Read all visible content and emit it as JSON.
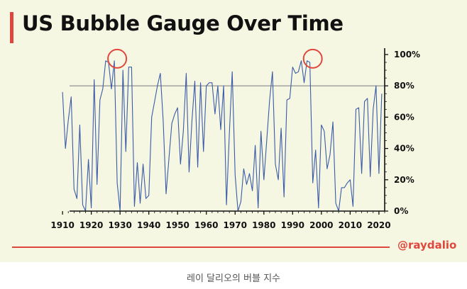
{
  "chart_data": {
    "type": "line",
    "title": "US Bubble Gauge Over Time",
    "xlabel": "",
    "ylabel": "",
    "xlim": [
      1908,
      2022
    ],
    "ylim": [
      0,
      1
    ],
    "x_ticks": [
      "1910",
      "1920",
      "1930",
      "1940",
      "1950",
      "1960",
      "1970",
      "1980",
      "1990",
      "2000",
      "2010",
      "2020"
    ],
    "y_ticks": [
      "0%",
      "20%",
      "40%",
      "60%",
      "80%",
      "100%"
    ],
    "y_tick_values": [
      0,
      0.2,
      0.4,
      0.6,
      0.8,
      1.0
    ],
    "threshold": 0.8,
    "grid": false,
    "line_color": "#3b5ba8",
    "series": [
      {
        "name": "",
        "x": [
          1910,
          1911,
          1912,
          1913,
          1914,
          1915,
          1916,
          1917,
          1918,
          1919,
          1920,
          1921,
          1922,
          1923,
          1924,
          1925,
          1926,
          1927,
          1928,
          1929,
          1930,
          1931,
          1932,
          1933,
          1934,
          1935,
          1936,
          1937,
          1938,
          1939,
          1940,
          1941,
          1942,
          1943,
          1944,
          1945,
          1946,
          1947,
          1948,
          1949,
          1950,
          1951,
          1952,
          1953,
          1954,
          1955,
          1956,
          1957,
          1958,
          1959,
          1960,
          1961,
          1962,
          1963,
          1964,
          1965,
          1966,
          1967,
          1968,
          1969,
          1970,
          1971,
          1972,
          1973,
          1974,
          1975,
          1976,
          1977,
          1978,
          1979,
          1980,
          1981,
          1982,
          1983,
          1984,
          1985,
          1986,
          1987,
          1988,
          1989,
          1990,
          1991,
          1992,
          1993,
          1994,
          1995,
          1996,
          1997,
          1998,
          1999,
          2000,
          2001,
          2002,
          2003,
          2004,
          2005,
          2006,
          2007,
          2008,
          2009,
          2010,
          2011,
          2012,
          2013,
          2014,
          2015,
          2016,
          2017,
          2018,
          2019,
          2020,
          2021
        ],
        "values": [
          0.76,
          0.4,
          0.58,
          0.73,
          0.14,
          0.08,
          0.55,
          0.04,
          0.0,
          0.33,
          0.02,
          0.84,
          0.17,
          0.71,
          0.78,
          0.96,
          0.95,
          0.78,
          0.96,
          0.18,
          0.0,
          0.9,
          0.38,
          0.92,
          0.92,
          0.03,
          0.31,
          0.05,
          0.3,
          0.08,
          0.1,
          0.6,
          0.7,
          0.8,
          0.88,
          0.58,
          0.11,
          0.34,
          0.56,
          0.62,
          0.66,
          0.3,
          0.51,
          0.88,
          0.25,
          0.58,
          0.83,
          0.28,
          0.82,
          0.38,
          0.8,
          0.82,
          0.82,
          0.62,
          0.8,
          0.52,
          0.8,
          0.04,
          0.5,
          0.89,
          0.23,
          0.0,
          0.06,
          0.27,
          0.17,
          0.24,
          0.13,
          0.42,
          0.02,
          0.51,
          0.2,
          0.45,
          0.71,
          0.89,
          0.3,
          0.2,
          0.53,
          0.09,
          0.71,
          0.72,
          0.92,
          0.88,
          0.89,
          0.96,
          0.82,
          0.96,
          0.95,
          0.18,
          0.39,
          0.02,
          0.55,
          0.51,
          0.27,
          0.36,
          0.57,
          0.05,
          0.0,
          0.15,
          0.15,
          0.18,
          0.2,
          0.03,
          0.65,
          0.66,
          0.24,
          0.7,
          0.72,
          0.22,
          0.65,
          0.8,
          0.24,
          0.75
        ]
      }
    ],
    "circled_x": [
      1929,
      1997
    ]
  },
  "footer": {
    "handle": "@raydalio",
    "caption": "레이 달리오의 버블 지수"
  },
  "colors": {
    "background": "#f6f7e3",
    "accent": "#e0473c",
    "threshold_line": "#888888",
    "axis": "#111111"
  }
}
